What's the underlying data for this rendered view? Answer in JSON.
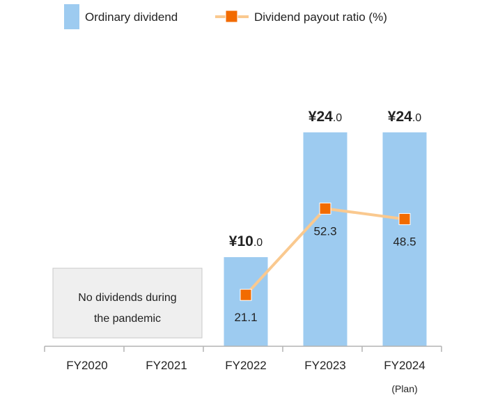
{
  "chart_data": {
    "type": "bar",
    "categories": [
      "FY2020",
      "FY2021",
      "FY2022",
      "FY2023",
      "FY2024"
    ],
    "category_sublabels": [
      "",
      "",
      "",
      "",
      "(Plan)"
    ],
    "series": [
      {
        "name": "Ordinary dividend",
        "kind": "bar",
        "color": "#9dcbf0",
        "values": [
          null,
          null,
          10.0,
          24.0,
          24.0
        ],
        "value_labels": [
          {
            "main": "",
            "decimal": ""
          },
          {
            "main": "",
            "decimal": ""
          },
          {
            "main": "¥10",
            "decimal": ".0"
          },
          {
            "main": "¥24",
            "decimal": ".0"
          },
          {
            "main": "¥24",
            "decimal": ".0"
          }
        ]
      },
      {
        "name": "Dividend payout ratio (%)",
        "kind": "line",
        "line_color": "#fac98f",
        "marker_color": "#f26b00",
        "values": [
          null,
          null,
          21.1,
          52.3,
          48.5
        ],
        "value_labels": [
          "",
          "",
          "21.1",
          "52.3",
          "48.5"
        ]
      }
    ],
    "annotation": {
      "text_lines": [
        "No dividends during",
        "the pandemic"
      ],
      "spans_categories": [
        "FY2020",
        "FY2021"
      ],
      "background": "#efefef",
      "border": "#c8c8c8"
    },
    "legend_position": "top",
    "grid": false,
    "ylim_dividend": [
      0,
      24
    ],
    "ylim_ratio": [
      0,
      100
    ],
    "axis_color": "#b3b3b3"
  }
}
